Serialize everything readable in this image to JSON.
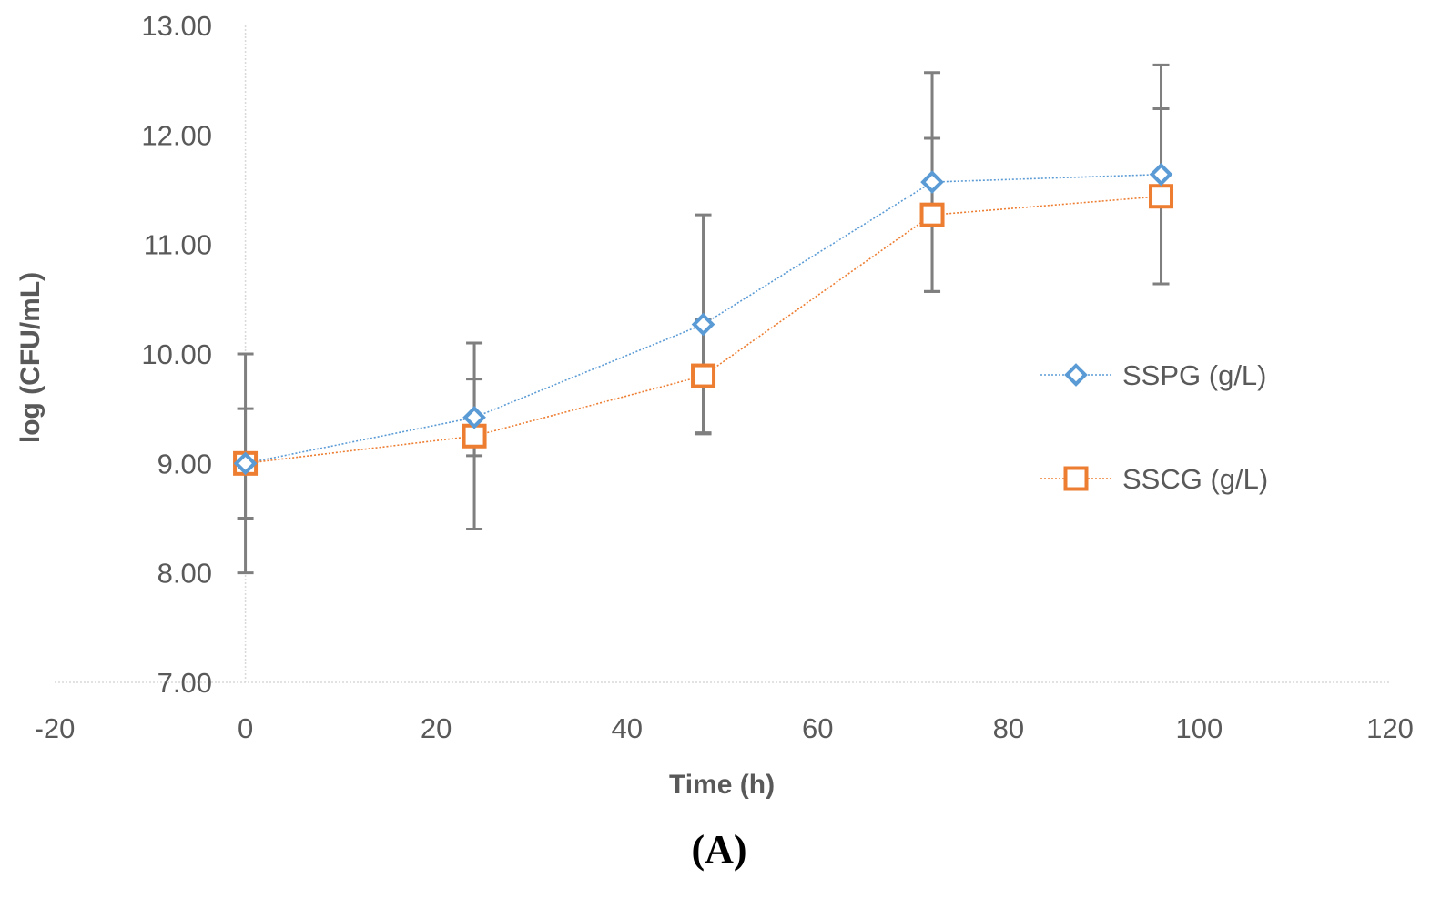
{
  "chart_data": {
    "type": "line",
    "title": "",
    "xlabel": "Time (h)",
    "ylabel": "log (CFU/mL)",
    "panel_label": "(A)",
    "xlim": [
      -20,
      120
    ],
    "ylim": [
      7,
      13
    ],
    "x_ticks": [
      "-20",
      "0",
      "20",
      "40",
      "60",
      "80",
      "100",
      "120"
    ],
    "x_tick_values": [
      -20,
      0,
      20,
      40,
      60,
      80,
      100,
      120
    ],
    "y_ticks": [
      "7.00",
      "8.00",
      "9.00",
      "10.00",
      "11.00",
      "12.00",
      "13.00"
    ],
    "y_tick_values": [
      7,
      8,
      9,
      10,
      11,
      12,
      13
    ],
    "legend_position": "right",
    "x": [
      0,
      24,
      48,
      72,
      96
    ],
    "series": [
      {
        "name": "SSPG (g/L)",
        "marker": "diamond",
        "color": "#5B9BD5",
        "values": [
          9.0,
          9.42,
          10.27,
          11.57,
          11.64
        ],
        "error": [
          0.5,
          0.35,
          1.0,
          1.0,
          1.0
        ]
      },
      {
        "name": "SSCG (g/L)",
        "marker": "square",
        "color": "#ED7D31",
        "values": [
          9.0,
          9.25,
          9.8,
          11.27,
          11.44
        ],
        "error": [
          1.0,
          0.85,
          0.52,
          0.7,
          0.8
        ]
      }
    ],
    "errorbar_color": "#7F7F7F",
    "grid_color": "#D9D9D9"
  }
}
